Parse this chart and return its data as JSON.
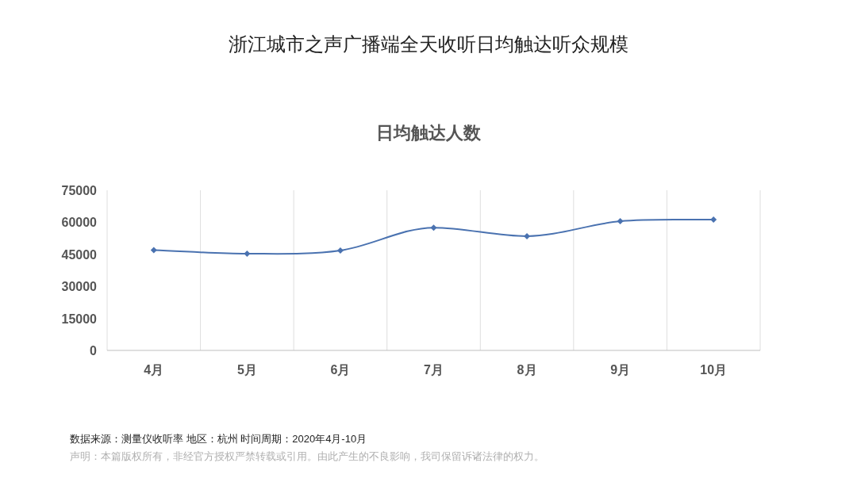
{
  "chart_data": {
    "type": "line",
    "title": "浙江城市之声广播端全天收听日均触达听众规模",
    "subtitle": "日均触达人数",
    "categories": [
      "4月",
      "5月",
      "6月",
      "7月",
      "8月",
      "9月",
      "10月"
    ],
    "series": [
      {
        "color": "#4a72b0",
        "values": [
          47000,
          45300,
          46800,
          57500,
          53500,
          60500,
          61300
        ]
      }
    ],
    "ylim": [
      0,
      75000
    ],
    "yticks": [
      0,
      15000,
      30000,
      45000,
      60000,
      75000
    ],
    "grid": "x",
    "marker": "diamond",
    "line_style": "solid",
    "annotations": [
      "数据来源：测量仪收听率  地区：杭州  时间周期：2020年4月-10月",
      "声明：本篇版权所有，非经官方授权严禁转载或引用。由此产生的不良影响，我司保留诉诸法律的权力。"
    ]
  }
}
